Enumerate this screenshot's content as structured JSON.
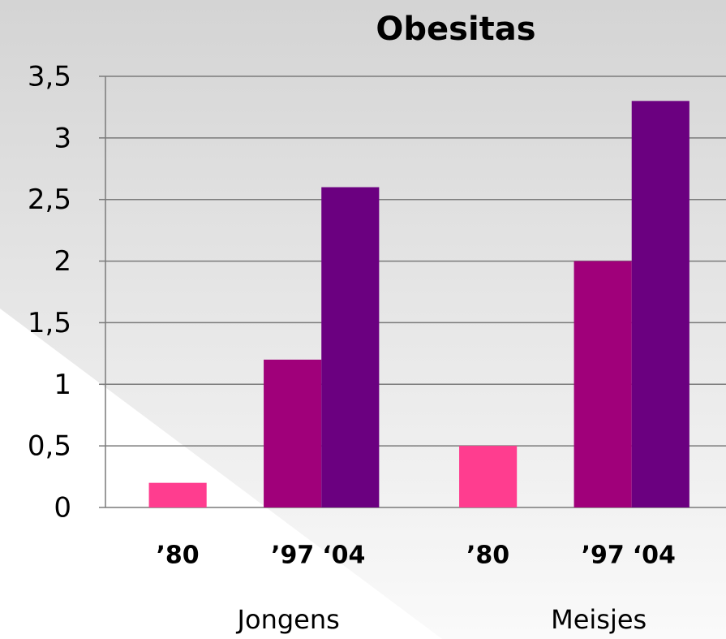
{
  "chart_data": {
    "type": "bar",
    "title": "Obesitas",
    "categories": [
      "Jongens",
      "Meisjes"
    ],
    "series": [
      {
        "name": "’80",
        "color": "#ff3d8f",
        "values": [
          0.2,
          0.5
        ]
      },
      {
        "name": "’97",
        "color": "#a0007a",
        "values": [
          1.2,
          2.0
        ]
      },
      {
        "name": "‘04",
        "color": "#6b0080",
        "values": [
          2.6,
          3.3
        ]
      }
    ],
    "ylim": [
      0,
      3.5
    ],
    "yticks": [
      0,
      {
        "value": 0.5,
        "label": "0,5"
      },
      1,
      {
        "value": 1.5,
        "label": "1,5"
      },
      2,
      {
        "value": 2.5,
        "label": "2,5"
      },
      3,
      {
        "value": 3.5,
        "label": "3,5"
      }
    ],
    "grid": true
  }
}
